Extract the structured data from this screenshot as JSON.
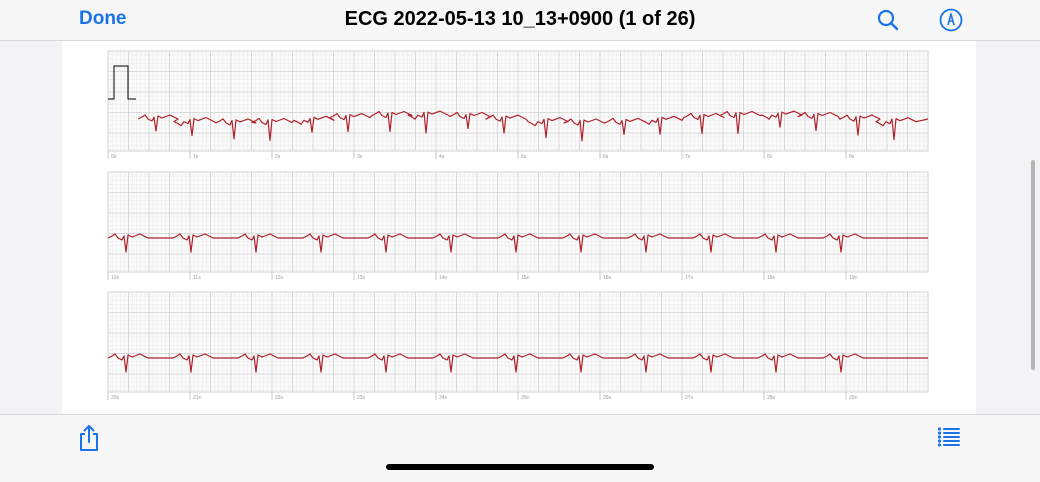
{
  "header": {
    "done_label": "Done",
    "title": "ECG 2022-05-13 10_13+0900 (1 of 26)",
    "search_icon": "search-icon",
    "markup_icon": "markup-pen-icon"
  },
  "footer": {
    "share_icon": "share-icon",
    "list_icon": "list-icon"
  },
  "colors": {
    "accent": "#1a73e8",
    "trace": "#b0202a",
    "grid_major": "#d2d2d2",
    "grid_minor": "#ececec"
  },
  "strips": [
    {
      "labels": [
        "0s",
        "1s",
        "2s",
        "3s",
        "4s",
        "5s",
        "6s",
        "7s",
        "8s",
        "9s"
      ],
      "calibration_pulse": true
    },
    {
      "labels": [
        "10s",
        "11s",
        "12s",
        "13s",
        "14s",
        "15s",
        "16s",
        "17s",
        "18s",
        "19s"
      ],
      "calibration_pulse": false
    },
    {
      "labels": [
        "20s",
        "21s",
        "22s",
        "23s",
        "24s",
        "25s",
        "26s",
        "27s",
        "28s",
        "29s"
      ],
      "calibration_pulse": false
    }
  ]
}
